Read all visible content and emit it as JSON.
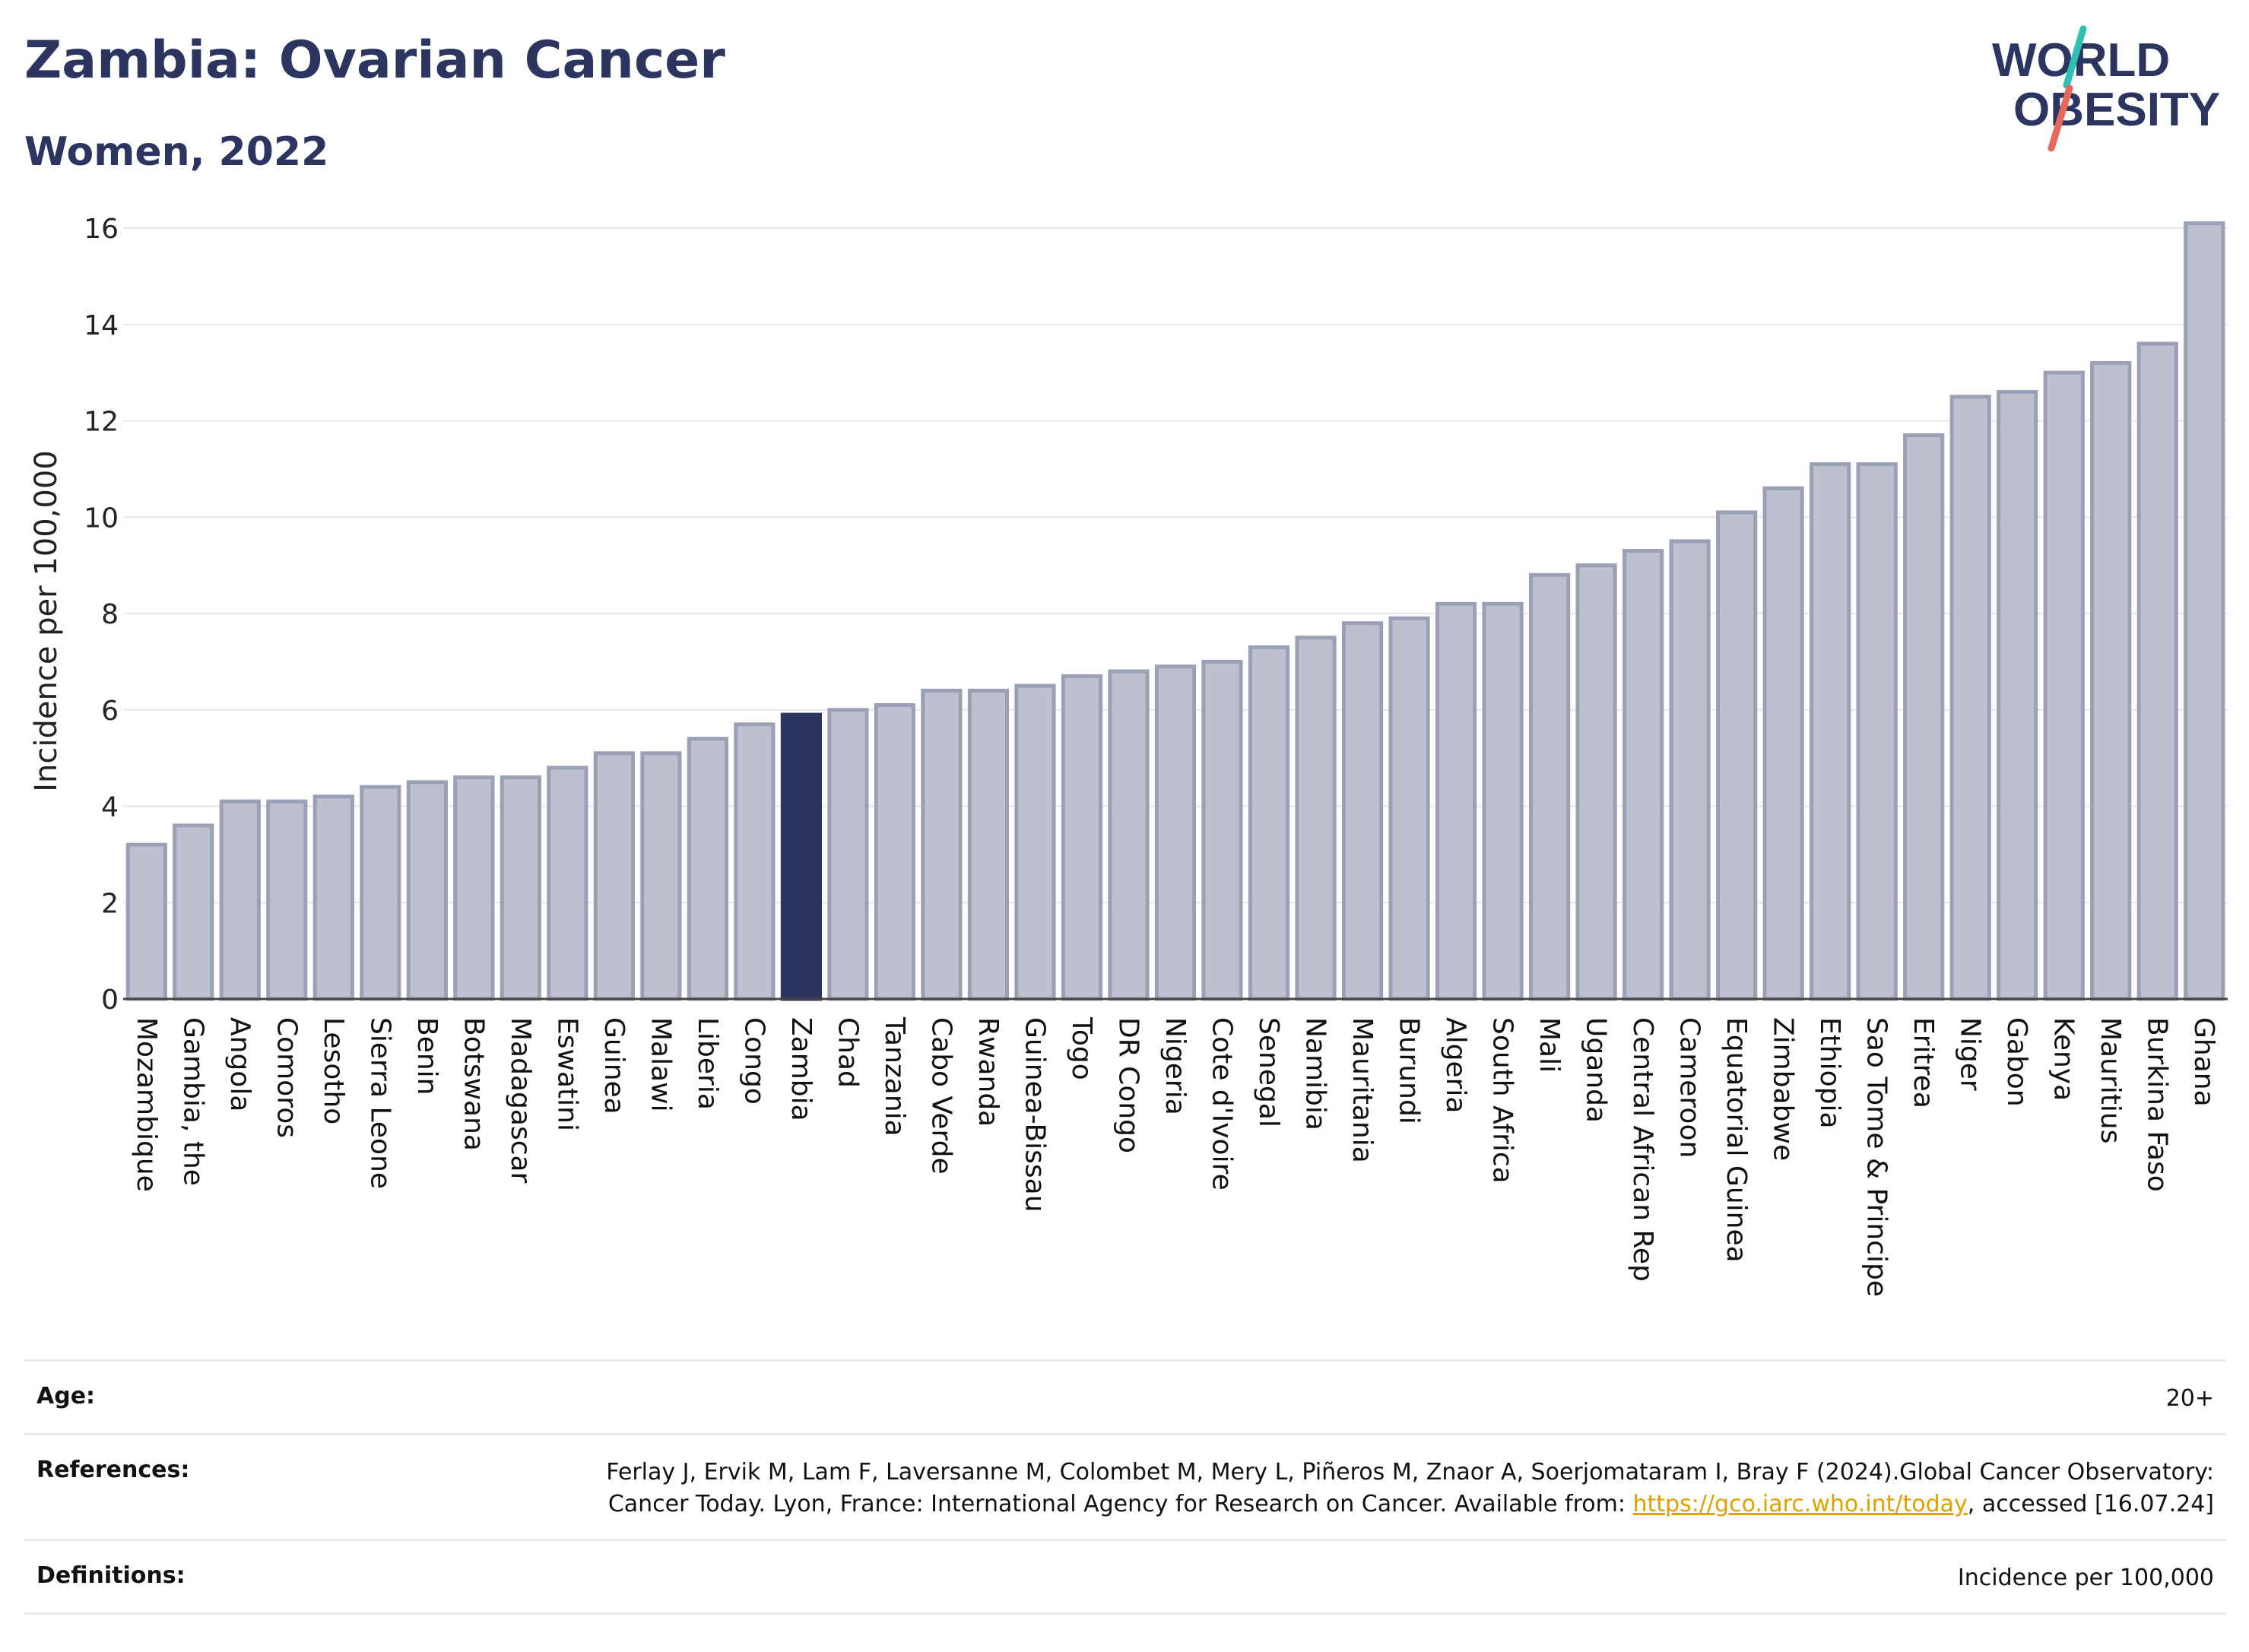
{
  "header": {
    "title": "Zambia: Ovarian Cancer",
    "subtitle": "Women, 2022",
    "logo_line1": "WORLD",
    "logo_line2": "OBESITY"
  },
  "colors": {
    "title": "#2b3560",
    "bar_fill": "#bcc0cf",
    "bar_stroke": "#9aa0b6",
    "highlight_fill": "#2b3560",
    "logo_teal": "#2fbfb3",
    "logo_red": "#e8685a",
    "link": "#e0a100"
  },
  "chart_data": {
    "type": "bar",
    "ylabel": "Incidence per 100,000",
    "ylim": [
      0,
      16
    ],
    "yticks": [
      "0",
      "2",
      "4",
      "6",
      "8",
      "10",
      "12",
      "14",
      "16"
    ],
    "highlight": "Zambia",
    "grid": true,
    "categories": [
      "Mozambique",
      "Gambia, the",
      "Angola",
      "Comoros",
      "Lesotho",
      "Sierra Leone",
      "Benin",
      "Botswana",
      "Madagascar",
      "Eswatini",
      "Guinea",
      "Malawi",
      "Liberia",
      "Congo",
      "Zambia",
      "Chad",
      "Tanzania",
      "Cabo Verde",
      "Rwanda",
      "Guinea-Bissau",
      "Togo",
      "DR Congo",
      "Nigeria",
      "Cote d'Ivoire",
      "Senegal",
      "Namibia",
      "Mauritania",
      "Burundi",
      "Algeria",
      "South Africa",
      "Mali",
      "Uganda",
      "Central African Rep",
      "Cameroon",
      "Equatorial Guinea",
      "Zimbabwe",
      "Ethiopia",
      "Sao Tome & Principe",
      "Eritrea",
      "Niger",
      "Gabon",
      "Kenya",
      "Mauritius",
      "Burkina Faso",
      "Ghana"
    ],
    "values": [
      3.2,
      3.6,
      4.1,
      4.1,
      4.2,
      4.4,
      4.5,
      4.6,
      4.6,
      4.8,
      5.1,
      5.1,
      5.4,
      5.7,
      5.9,
      6.0,
      6.1,
      6.4,
      6.4,
      6.5,
      6.7,
      6.8,
      6.9,
      7.0,
      7.3,
      7.5,
      7.8,
      7.9,
      8.2,
      8.2,
      8.8,
      9.0,
      9.3,
      9.5,
      10.1,
      10.6,
      11.1,
      11.1,
      11.7,
      12.5,
      12.6,
      13.0,
      13.2,
      13.6,
      16.1
    ]
  },
  "footer": {
    "age_label": "Age:",
    "age_value": "20+",
    "references_label": "References:",
    "references_text": "Ferlay J, Ervik M, Lam F, Laversanne M, Colombet M, Mery L, Piñeros M, Znaor A, Soerjomataram I, Bray F (2024).Global Cancer Observatory: Cancer Today. Lyon, France: International Agency for Research on Cancer. Available from:",
    "references_link": "https://gco.iarc.who.int/today",
    "references_suffix": ", accessed [16.07.24]",
    "definitions_label": "Definitions:",
    "definitions_value": "Incidence per 100,000"
  }
}
